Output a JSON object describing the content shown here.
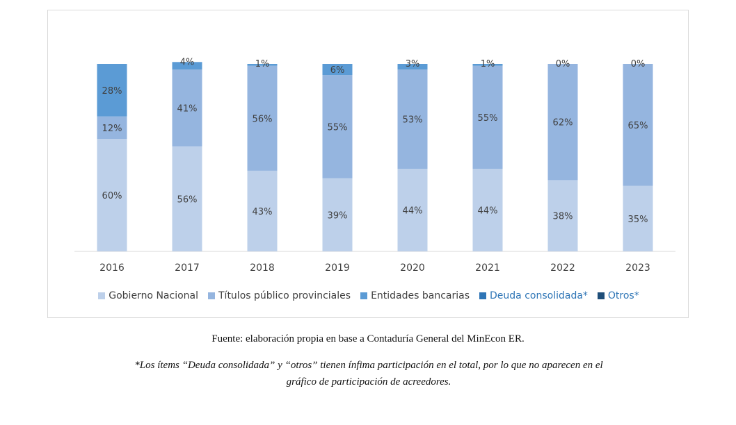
{
  "chart_data": {
    "type": "bar",
    "stacked": true,
    "normalized_percent": true,
    "categories": [
      "2016",
      "2017",
      "2018",
      "2019",
      "2020",
      "2021",
      "2022",
      "2023"
    ],
    "series": [
      {
        "name": "Gobierno Nacional",
        "color": "#bdd0ea",
        "values": [
          60,
          56,
          43,
          39,
          44,
          44,
          38,
          35
        ],
        "labels": [
          "60%",
          "56%",
          "43%",
          "39%",
          "44%",
          "44%",
          "38%",
          "35%"
        ]
      },
      {
        "name": "Títulos público provinciales",
        "color": "#95b5df",
        "values": [
          12,
          41,
          56,
          55,
          53,
          55,
          62,
          65
        ],
        "labels": [
          "12%",
          "41%",
          "56%",
          "55%",
          "53%",
          "55%",
          "62%",
          "65%"
        ]
      },
      {
        "name": "Entidades bancarias",
        "color": "#5b9bd5",
        "values": [
          28,
          4,
          1,
          6,
          3,
          1,
          0,
          0
        ],
        "labels": [
          "28%",
          "4%",
          "1%",
          "6%",
          "3%",
          "1%",
          "0%",
          "0%"
        ]
      },
      {
        "name": "Deuda consolidada*",
        "color": "#2e75b6",
        "values": [
          0,
          0,
          0,
          0,
          0,
          0,
          0,
          0
        ],
        "labels": []
      },
      {
        "name": "Otros*",
        "color": "#1f4e79",
        "values": [
          0,
          0,
          0,
          0,
          0,
          0,
          0,
          0
        ],
        "labels": []
      }
    ],
    "ylim": [
      0,
      100
    ],
    "grid": false,
    "legend_position": "bottom",
    "legend_text_colors": [
      "#404040",
      "#404040",
      "#404040",
      "#2e75b6",
      "#2e75b6"
    ]
  },
  "source_text": "Fuente: elaboración propia en base a Contaduría General del MinEcon ER.",
  "note_line1": "*Los ítems “Deuda consolidada” y “otros” tienen ínfima participación en el total, por lo que no aparecen en el",
  "note_line2": "gráfico de participación de acreedores."
}
